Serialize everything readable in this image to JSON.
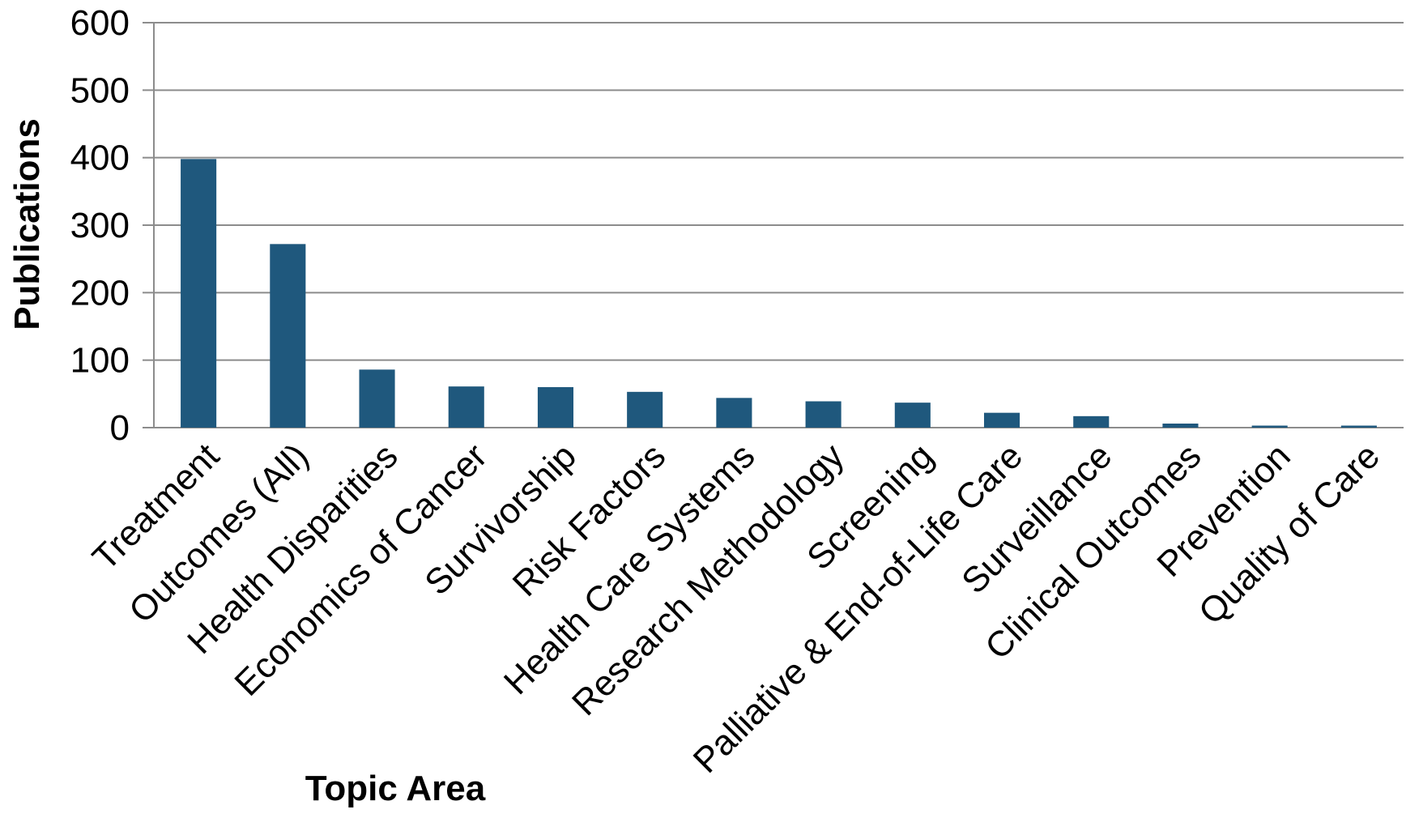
{
  "chart_data": {
    "type": "bar",
    "categories": [
      "Treatment",
      "Outcomes (All)",
      "Health Disparities",
      "Economics of Cancer",
      "Survivorship",
      "Risk Factors",
      "Health Care Systems",
      "Research Methodology",
      "Screening",
      "Palliative & End-of-Life Care",
      "Surveillance",
      "Clinical Outcomes",
      "Prevention",
      "Quality of Care"
    ],
    "values": [
      398,
      272,
      86,
      61,
      60,
      53,
      44,
      39,
      37,
      22,
      17,
      6,
      3,
      3
    ],
    "title": "",
    "xlabel": "Topic Area",
    "ylabel": "Publications",
    "ylim": [
      0,
      600
    ],
    "yticks": [
      "0",
      "100",
      "200",
      "300",
      "400",
      "500",
      "600"
    ],
    "grid": true,
    "legend": "none",
    "colors": {
      "bar": "#1f587d",
      "grid": "#8c8c8c",
      "axis": "#8c8c8c",
      "text": "#000000"
    }
  }
}
